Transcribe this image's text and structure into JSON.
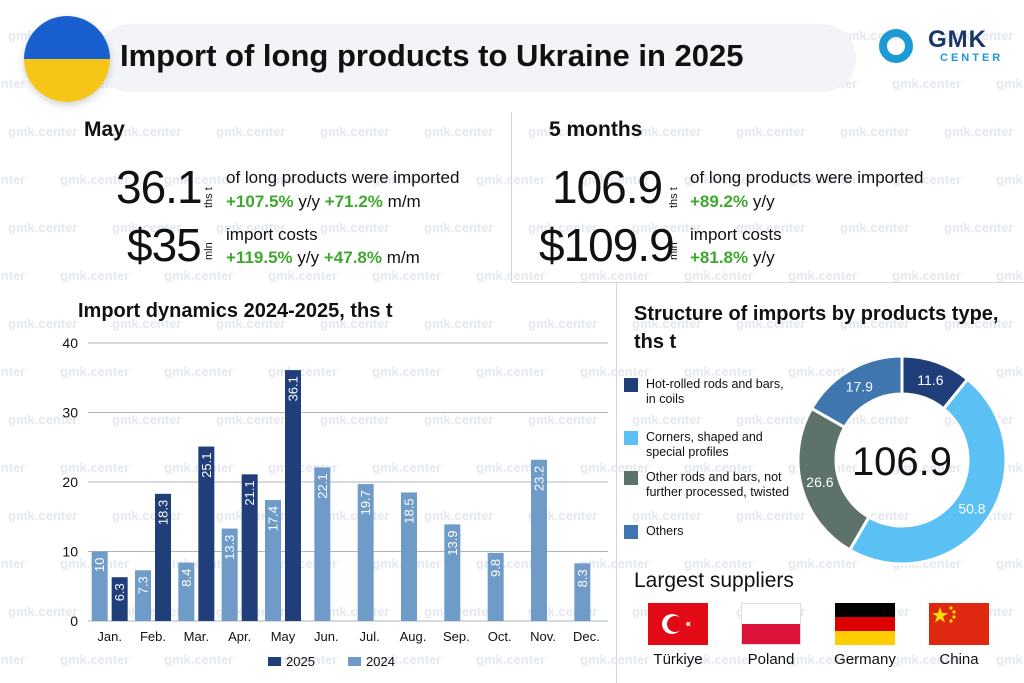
{
  "title": "Import of long products to Ukraine in 2025",
  "logo": {
    "word": "GMK",
    "sub": "CENTER"
  },
  "watermark": "gmk.center",
  "may": {
    "heading": "May",
    "volume": "36.1",
    "volume_unit": "ths t",
    "volume_desc": "of long products were imported",
    "volume_yy": "+107.5%",
    "volume_mm": "+71.2%",
    "cost": "$35",
    "cost_unit": "mln",
    "cost_desc": "import costs",
    "cost_yy": "+119.5%",
    "cost_mm": "+47.8%",
    "yy_label": "y/y",
    "mm_label": "m/m"
  },
  "five_months": {
    "heading": "5 months",
    "volume": "106.9",
    "volume_unit": "ths t",
    "volume_desc": "of long products were imported",
    "volume_yy": "+89.2%",
    "cost": "$109.9",
    "cost_unit": "mln",
    "cost_desc": "import costs",
    "cost_yy": "+81.8%",
    "yy_label": "y/y"
  },
  "colors": {
    "series_2025": "#1f3e7a",
    "series_2024": "#6f9bc8",
    "positive": "#3fa82e"
  },
  "chart_data": [
    {
      "type": "bar",
      "title": "Import dynamics 2024-2025, ths t",
      "categories": [
        "Jan.",
        "Feb.",
        "Mar.",
        "Apr.",
        "May",
        "Jun.",
        "Jul.",
        "Aug.",
        "Sep.",
        "Oct.",
        "Nov.",
        "Dec."
      ],
      "series": [
        {
          "name": "2024",
          "values": [
            10,
            7.3,
            8.4,
            13.3,
            17.4,
            22.1,
            19.7,
            18.5,
            13.9,
            9.8,
            23.2,
            8.3
          ]
        },
        {
          "name": "2025",
          "values": [
            6.3,
            18.3,
            25.1,
            21.1,
            36.1,
            null,
            null,
            null,
            null,
            null,
            null,
            null
          ]
        }
      ],
      "yticks": [
        0,
        10,
        20,
        30,
        40
      ],
      "ylim": [
        0,
        40
      ],
      "grid": true,
      "legend": "bottom"
    },
    {
      "type": "pie",
      "title": "Structure of imports by products type, ths t",
      "center_label": "106.9",
      "labels": [
        "Hot-rolled rods and bars, in coils",
        "Corners, shaped and special profiles",
        "Other rods and bars, not further processed, twisted",
        "Others"
      ],
      "values": [
        11.6,
        50.8,
        26.6,
        17.9
      ],
      "colors": [
        "#1f3e7a",
        "#5bc1f5",
        "#5d7268",
        "#3f76b0"
      ],
      "legend": "left"
    }
  ],
  "suppliers": {
    "title": "Largest suppliers",
    "items": [
      {
        "name": "Türkiye",
        "flag": "turkey-flag-icon"
      },
      {
        "name": "Poland",
        "flag": "poland-flag-icon"
      },
      {
        "name": "Germany",
        "flag": "germany-flag-icon"
      },
      {
        "name": "China",
        "flag": "china-flag-icon"
      }
    ]
  }
}
